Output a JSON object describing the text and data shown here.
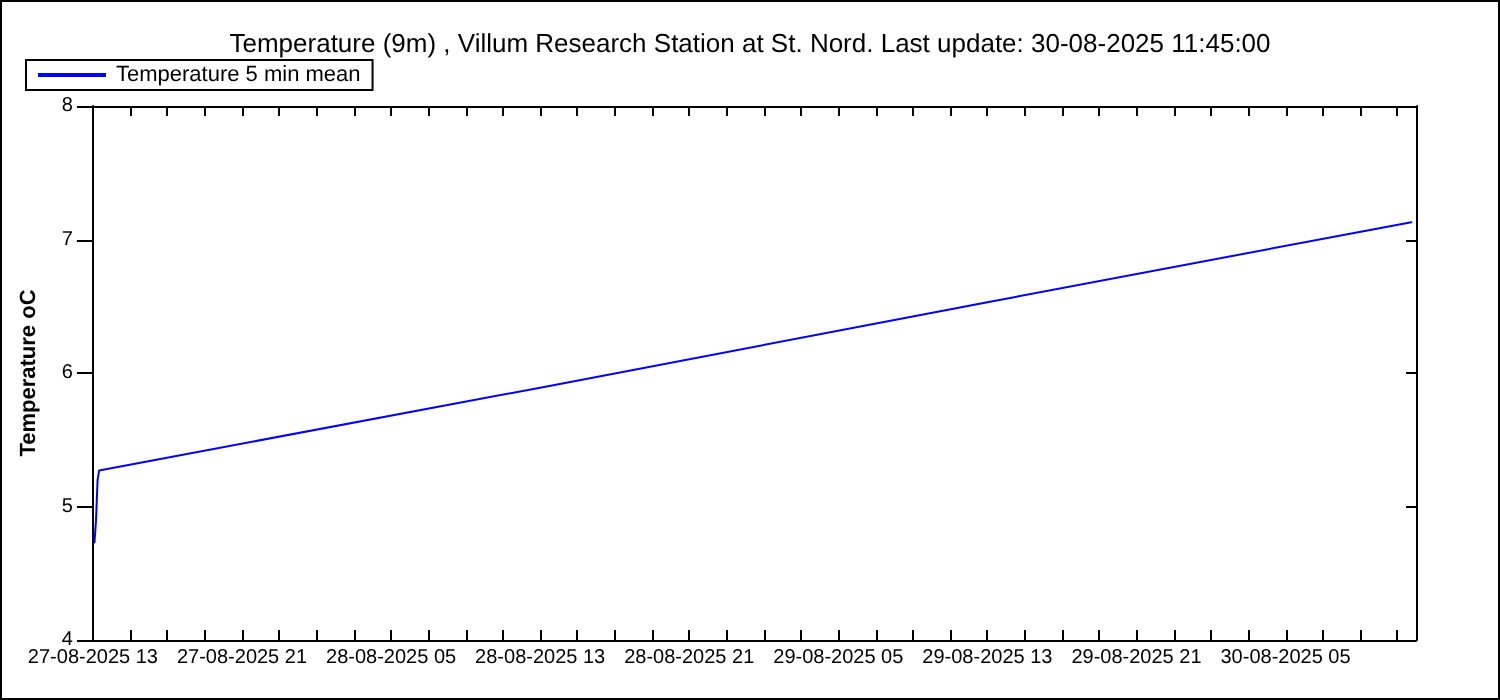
{
  "chart_data": {
    "type": "line",
    "title": "Temperature (9m) , Villum Research Station at St. Nord. Last update: 30-08-2025 11:45:00",
    "ylabel": "Temperature oC",
    "x": [
      "2025-08-27T13:05",
      "2025-08-27T13:10",
      "2025-08-27T13:15",
      "2025-08-27T13:20",
      "2025-08-28T13:00",
      "2025-08-29T13:00",
      "2025-08-30T11:45"
    ],
    "series": [
      {
        "name": "Temperature 5 min mean",
        "color": "#0000ff",
        "values": [
          4.73,
          4.9,
          5.2,
          5.27,
          5.89,
          6.53,
          7.13
        ]
      }
    ],
    "xlim": [
      "2025-08-27T13:00",
      "2025-08-30T12:00"
    ],
    "xticks": [
      {
        "value": "2025-08-27T13:00",
        "label": "27-08-2025 13"
      },
      {
        "value": "2025-08-27T15:00",
        "label": null
      },
      {
        "value": "2025-08-27T17:00",
        "label": null
      },
      {
        "value": "2025-08-27T19:00",
        "label": null
      },
      {
        "value": "2025-08-27T21:00",
        "label": "27-08-2025 21"
      },
      {
        "value": "2025-08-27T23:00",
        "label": null
      },
      {
        "value": "2025-08-28T01:00",
        "label": null
      },
      {
        "value": "2025-08-28T03:00",
        "label": null
      },
      {
        "value": "2025-08-28T05:00",
        "label": "28-08-2025 05"
      },
      {
        "value": "2025-08-28T07:00",
        "label": null
      },
      {
        "value": "2025-08-28T09:00",
        "label": null
      },
      {
        "value": "2025-08-28T11:00",
        "label": null
      },
      {
        "value": "2025-08-28T13:00",
        "label": "28-08-2025 13"
      },
      {
        "value": "2025-08-28T15:00",
        "label": null
      },
      {
        "value": "2025-08-28T17:00",
        "label": null
      },
      {
        "value": "2025-08-28T19:00",
        "label": null
      },
      {
        "value": "2025-08-28T21:00",
        "label": "28-08-2025 21"
      },
      {
        "value": "2025-08-28T23:00",
        "label": null
      },
      {
        "value": "2025-08-29T01:00",
        "label": null
      },
      {
        "value": "2025-08-29T03:00",
        "label": null
      },
      {
        "value": "2025-08-29T05:00",
        "label": "29-08-2025 05"
      },
      {
        "value": "2025-08-29T07:00",
        "label": null
      },
      {
        "value": "2025-08-29T09:00",
        "label": null
      },
      {
        "value": "2025-08-29T11:00",
        "label": null
      },
      {
        "value": "2025-08-29T13:00",
        "label": "29-08-2025 13"
      },
      {
        "value": "2025-08-29T15:00",
        "label": null
      },
      {
        "value": "2025-08-29T17:00",
        "label": null
      },
      {
        "value": "2025-08-29T19:00",
        "label": null
      },
      {
        "value": "2025-08-29T21:00",
        "label": "29-08-2025 21"
      },
      {
        "value": "2025-08-29T23:00",
        "label": null
      },
      {
        "value": "2025-08-30T01:00",
        "label": null
      },
      {
        "value": "2025-08-30T03:00",
        "label": null
      },
      {
        "value": "2025-08-30T05:00",
        "label": "30-08-2025 05"
      },
      {
        "value": "2025-08-30T07:00",
        "label": null
      },
      {
        "value": "2025-08-30T09:00",
        "label": null
      },
      {
        "value": "2025-08-30T11:00",
        "label": null
      }
    ],
    "ylim": [
      4,
      8
    ],
    "yticks": [
      4,
      5,
      6,
      7,
      8
    ],
    "grid": false,
    "legend": "top left",
    "marker": "none",
    "line_style": "solid"
  }
}
